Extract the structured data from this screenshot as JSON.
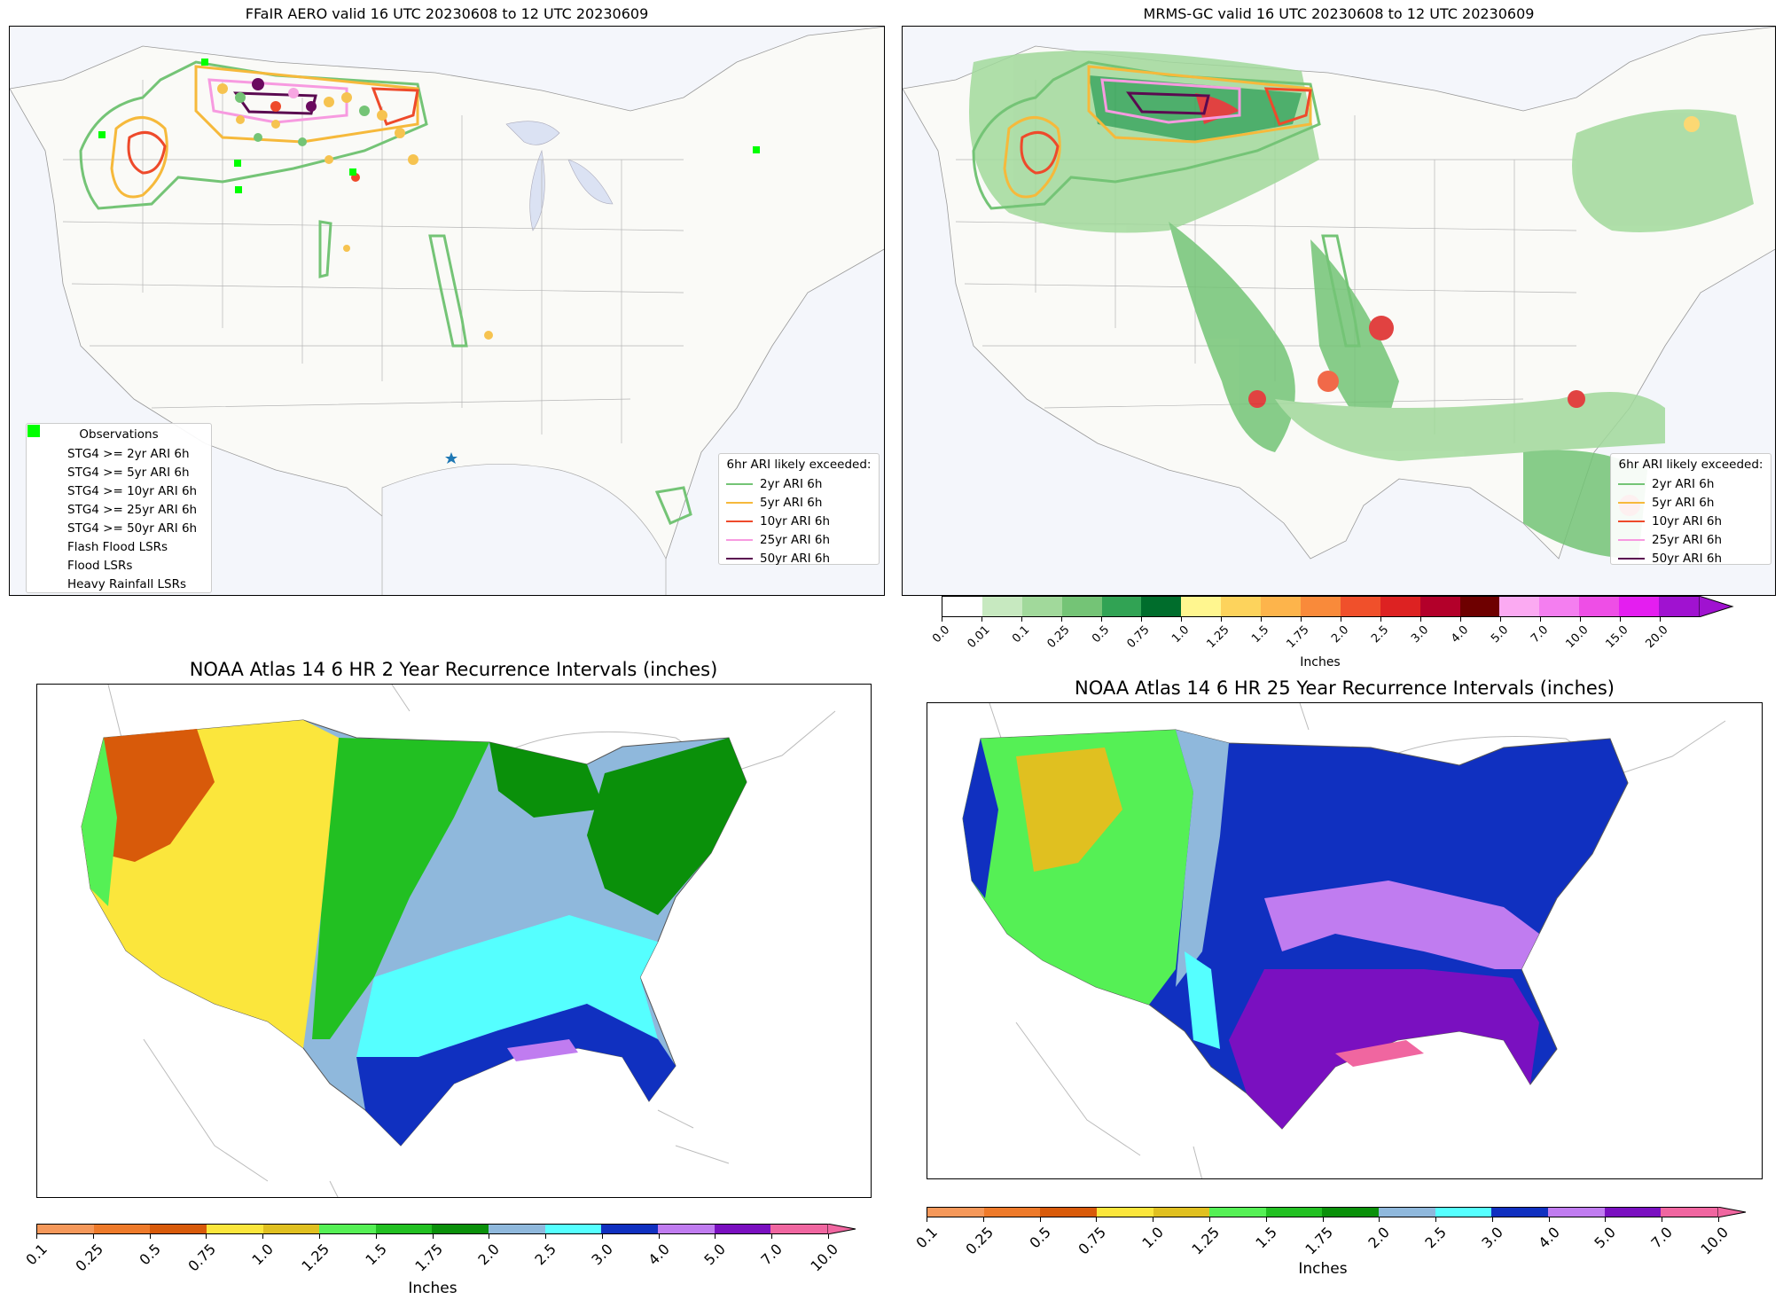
{
  "panels": {
    "top_left": {
      "title": "FFaIR AERO valid 16 UTC 20230608 to 12 UTC 20230609",
      "obs_legend": {
        "title": "Observations",
        "items": [
          {
            "label": "STG4 >= 2yr ARI 6h",
            "color": "#74c476",
            "symbol": "circle"
          },
          {
            "label": "STG4 >= 5yr ARI 6h",
            "color": "#f6c350",
            "symbol": "circle"
          },
          {
            "label": "STG4 >= 10yr ARI 6h",
            "color": "#ee4a2b",
            "symbol": "circle"
          },
          {
            "label": "STG4 >= 25yr ARI 6h",
            "color": "#f7a6e2",
            "symbol": "circle"
          },
          {
            "label": "STG4 >= 50yr ARI 6h",
            "color": "#6a0a5f",
            "symbol": "circle"
          },
          {
            "label": "Flash Flood LSRs",
            "color": "#1f78b4",
            "symbol": "star"
          },
          {
            "label": "Flood LSRs",
            "color": "#22d3e6",
            "symbol": "star"
          },
          {
            "label": "Heavy Rainfall LSRs",
            "color": "#00ff00",
            "symbol": "square"
          }
        ]
      },
      "ari_legend": {
        "title": "6hr ARI likely exceeded:",
        "items": [
          {
            "label": "2yr ARI 6h",
            "color": "#74c476"
          },
          {
            "label": "5yr ARI 6h",
            "color": "#f6b93b"
          },
          {
            "label": "10yr ARI 6h",
            "color": "#ee4a2b"
          },
          {
            "label": "25yr ARI 6h",
            "color": "#f79ae0"
          },
          {
            "label": "50yr ARI 6h",
            "color": "#5a0a50"
          }
        ]
      }
    },
    "top_right": {
      "title": "MRMS-GC valid 16 UTC 20230608 to 12 UTC 20230609",
      "ari_legend": {
        "title": "6hr ARI likely exceeded:",
        "items": [
          {
            "label": "2yr ARI 6h",
            "color": "#74c476"
          },
          {
            "label": "5yr ARI 6h",
            "color": "#f6b93b"
          },
          {
            "label": "10yr ARI 6h",
            "color": "#ee4a2b"
          },
          {
            "label": "25yr ARI 6h",
            "color": "#f79ae0"
          },
          {
            "label": "50yr ARI 6h",
            "color": "#5a0a50"
          }
        ]
      },
      "colorbar": {
        "label": "Inches",
        "ticks": [
          "0.0",
          "0.01",
          "0.1",
          "0.25",
          "0.5",
          "0.75",
          "1.0",
          "1.25",
          "1.5",
          "1.75",
          "2.0",
          "2.5",
          "3.0",
          "4.0",
          "5.0",
          "7.0",
          "10.0",
          "15.0",
          "20.0"
        ],
        "colors": [
          "#ffffff",
          "#c7e9c0",
          "#a1d99b",
          "#74c476",
          "#31a354",
          "#006d2c",
          "#fff68f",
          "#fdd35c",
          "#fdb44b",
          "#f98a3a",
          "#f0502b",
          "#dd2222",
          "#b3002a",
          "#6e0000",
          "#fbaaf2",
          "#f47ef0",
          "#ee4ee6",
          "#e41ef0",
          "#a012d0"
        ]
      }
    },
    "bottom_left": {
      "title": "NOAA Atlas 14 6 HR 2 Year Recurrence Intervals (inches)",
      "colorbar": {
        "label": "Inches",
        "ticks": [
          "0.1",
          "0.25",
          "0.5",
          "0.75",
          "1.0",
          "1.25",
          "1.5",
          "1.75",
          "2.0",
          "2.5",
          "3.0",
          "4.0",
          "5.0",
          "7.0",
          "10.0"
        ],
        "colors": [
          "#f5985a",
          "#ee7a2a",
          "#d85a0a",
          "#fbe63c",
          "#e0c020",
          "#55f055",
          "#22c022",
          "#0a900a",
          "#8fb8dc",
          "#55ffff",
          "#1030c0",
          "#c07cf0",
          "#7a10c0",
          "#f066a0"
        ]
      }
    },
    "bottom_right": {
      "title": "NOAA Atlas 14 6 HR 25 Year Recurrence Intervals (inches)",
      "colorbar": {
        "label": "Inches",
        "ticks": [
          "0.1",
          "0.25",
          "0.5",
          "0.75",
          "1.0",
          "1.25",
          "1.5",
          "1.75",
          "2.0",
          "2.5",
          "3.0",
          "4.0",
          "5.0",
          "7.0",
          "10.0"
        ],
        "colors": [
          "#f5985a",
          "#ee7a2a",
          "#d85a0a",
          "#fbe63c",
          "#e0c020",
          "#55f055",
          "#22c022",
          "#0a900a",
          "#8fb8dc",
          "#55ffff",
          "#1030c0",
          "#c07cf0",
          "#7a10c0",
          "#f066a0"
        ]
      }
    }
  }
}
